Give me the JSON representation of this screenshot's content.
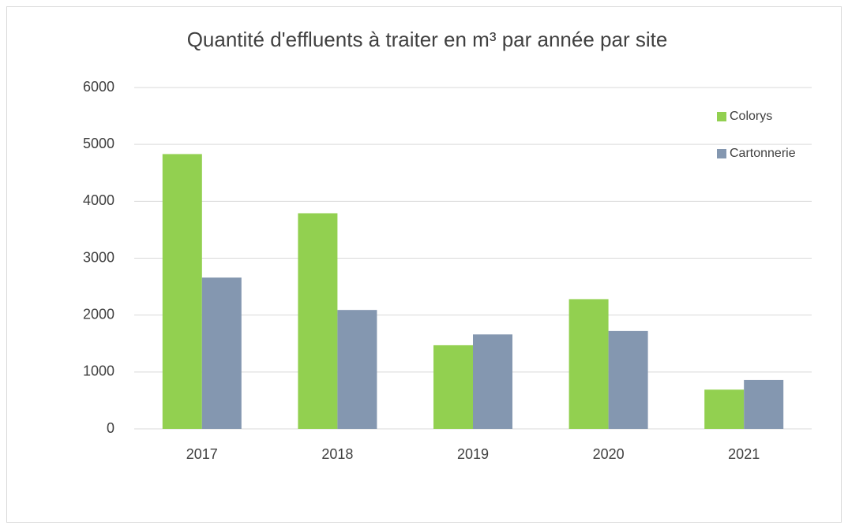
{
  "chart_data": {
    "type": "bar",
    "title": "Quantité d'effluents à traiter en m³ par année par site",
    "categories": [
      "2017",
      "2018",
      "2019",
      "2020",
      "2021"
    ],
    "series": [
      {
        "name": "Colorys",
        "color": "#92d050",
        "values": [
          4830,
          3790,
          1470,
          2280,
          690
        ]
      },
      {
        "name": "Cartonnerie",
        "color": "#8497b0",
        "values": [
          2660,
          2090,
          1660,
          1720,
          860
        ]
      }
    ],
    "ylim": [
      0,
      6000
    ],
    "yticks": [
      0,
      1000,
      2000,
      3000,
      4000,
      5000,
      6000
    ],
    "grid": true,
    "legend": "right"
  }
}
